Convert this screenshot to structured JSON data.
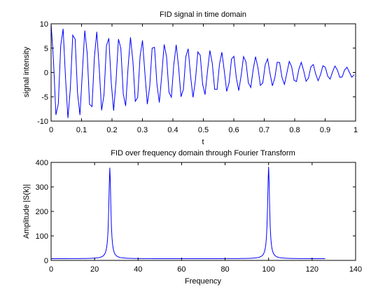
{
  "chart_data": [
    {
      "type": "line",
      "title": "FID signal in time domain",
      "xlabel": "t",
      "ylabel": "signal intensity",
      "xlim": [
        0,
        1
      ],
      "ylim": [
        -10,
        10
      ],
      "xticks": [
        0,
        0.1,
        0.2,
        0.3,
        0.4,
        0.5,
        0.6,
        0.7,
        0.8,
        0.9,
        1
      ],
      "xtick_labels": [
        "0",
        "0.1",
        "0.2",
        "0.3",
        "0.4",
        "0.5",
        "0.6",
        "0.7",
        "0.8",
        "0.9",
        "1"
      ],
      "yticks": [
        -10,
        -5,
        0,
        5,
        10
      ],
      "ytick_labels": [
        "-10",
        "-5",
        "0",
        "5",
        "10"
      ],
      "grid": false,
      "color": "#0000ff",
      "series": [
        {
          "samples": 127,
          "x_start": 0,
          "x_step": 0.0079,
          "components": [
            {
              "amplitude": 5,
              "frequency": 27
            },
            {
              "amplitude": 5,
              "frequency": 100
            }
          ],
          "decay_rate": 1.0
        }
      ]
    },
    {
      "type": "line",
      "title": "FID over frequency domain through Fourier Transform",
      "xlabel": "Frequency",
      "ylabel": "Amplitude |S(k)|",
      "xlim": [
        0,
        140
      ],
      "ylim": [
        0,
        400
      ],
      "xticks": [
        0,
        20,
        40,
        60,
        80,
        100,
        120,
        140
      ],
      "xtick_labels": [
        "0",
        "20",
        "40",
        "60",
        "80",
        "100",
        "120",
        "140"
      ],
      "yticks": [
        0,
        100,
        200,
        300,
        400
      ],
      "ytick_labels": [
        "0",
        "100",
        "200",
        "300",
        "400"
      ],
      "grid": false,
      "color": "#0000ff",
      "series": [
        {
          "x_range": [
            0,
            126
          ],
          "peaks": [
            {
              "frequency": 27,
              "height": 378
            },
            {
              "frequency": 100,
              "height": 382
            }
          ],
          "baseline": 7
        }
      ]
    }
  ]
}
